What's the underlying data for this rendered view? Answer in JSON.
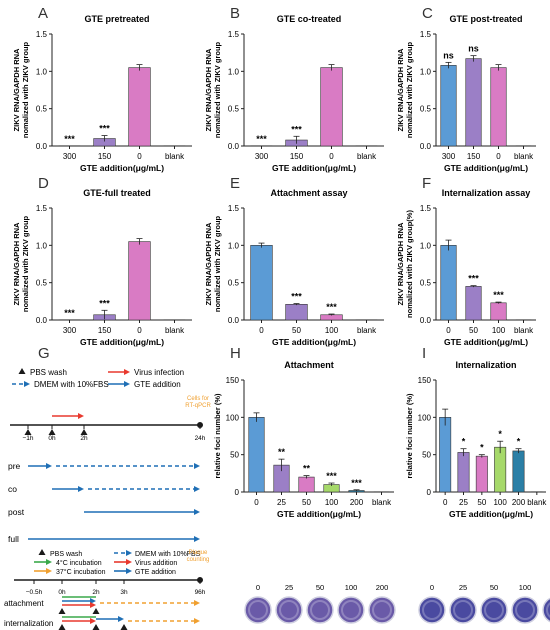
{
  "colors": {
    "pink": "#d97bc4",
    "blue": "#5b9bd5",
    "purple": "#9b7fc6",
    "green": "#a6d96a",
    "teal": "#2b7fa6",
    "red": "#e8392e",
    "orange": "#f0a030",
    "dark": "#1a1a1a",
    "dish_purple": "#6a5aa8"
  },
  "chart_data": [
    {
      "panel": "A",
      "type": "bar",
      "title": "GTE pretreated",
      "ylabel": [
        "ZIKV RNA/GAPDH RNA",
        "nomalized with ZIKV group"
      ],
      "xlabel": "GTE addition(μg/mL)",
      "ylim": [
        0,
        1.5
      ],
      "yticks": [
        "0.0",
        "0.5",
        "1.0",
        "1.5"
      ],
      "categories": [
        "300",
        "150",
        "0",
        "blank"
      ],
      "values": [
        0.0,
        0.1,
        1.05,
        0.0
      ],
      "errors": [
        0.0,
        0.04,
        0.04,
        0.0
      ],
      "colors": [
        "pink",
        "purple",
        "pink",
        "pink"
      ],
      "sig": [
        "***",
        "***",
        "",
        ""
      ]
    },
    {
      "panel": "B",
      "type": "bar",
      "title": "GTE co-treated",
      "ylabel": [
        "ZIKV RNA/GAPDH RNA",
        "nomalized with ZIKV group"
      ],
      "xlabel": "GTE addition(μg/mL)",
      "ylim": [
        0,
        1.5
      ],
      "yticks": [
        "0.0",
        "0.5",
        "1.0",
        "1.5"
      ],
      "categories": [
        "300",
        "150",
        "0",
        "blank"
      ],
      "values": [
        0.0,
        0.08,
        1.05,
        0.0
      ],
      "errors": [
        0.0,
        0.05,
        0.04,
        0.0
      ],
      "colors": [
        "pink",
        "purple",
        "pink",
        "pink"
      ],
      "sig": [
        "***",
        "***",
        "",
        ""
      ]
    },
    {
      "panel": "C",
      "type": "bar",
      "title": "GTE post-treated",
      "ylabel": [
        "ZIKV RNA/GAPDH RNA",
        "nomalized with ZIKV group"
      ],
      "xlabel": "GTE addition(μg/mL)",
      "ylim": [
        0,
        1.5
      ],
      "yticks": [
        "0.0",
        "0.5",
        "1.0",
        "1.5"
      ],
      "categories": [
        "300",
        "150",
        "0",
        "blank"
      ],
      "values": [
        1.08,
        1.17,
        1.05,
        0.0
      ],
      "errors": [
        0.04,
        0.04,
        0.04,
        0.0
      ],
      "colors": [
        "blue",
        "purple",
        "pink",
        "pink"
      ],
      "sig": [
        "ns",
        "ns",
        "",
        ""
      ]
    },
    {
      "panel": "D",
      "type": "bar",
      "title": "GTE-full treated",
      "ylabel": [
        "ZIKV RNA/GAPDH RNA",
        "nomalized with ZIKV group"
      ],
      "xlabel": "GTE addition(μg/mL)",
      "ylim": [
        0,
        1.5
      ],
      "yticks": [
        "0.0",
        "0.5",
        "1.0",
        "1.5"
      ],
      "categories": [
        "300",
        "150",
        "0",
        "blank"
      ],
      "values": [
        0.0,
        0.07,
        1.05,
        0.0
      ],
      "errors": [
        0.0,
        0.06,
        0.04,
        0.0
      ],
      "colors": [
        "pink",
        "purple",
        "pink",
        "pink"
      ],
      "sig": [
        "***",
        "***",
        "",
        ""
      ]
    },
    {
      "panel": "E",
      "type": "bar",
      "title": "Attachment assay",
      "ylabel": [
        "ZIKV RNA/GAPDH RNA",
        "nomalized with ZIKV group"
      ],
      "xlabel": "GTE addition(μg/mL)",
      "ylim": [
        0,
        1.5
      ],
      "yticks": [
        "0.0",
        "0.5",
        "1.0",
        "1.5"
      ],
      "categories": [
        "0",
        "50",
        "100",
        "blank"
      ],
      "values": [
        1.0,
        0.21,
        0.07,
        0.0
      ],
      "errors": [
        0.03,
        0.01,
        0.01,
        0.0
      ],
      "colors": [
        "blue",
        "purple",
        "pink",
        "pink"
      ],
      "sig": [
        "",
        "***",
        "***",
        ""
      ]
    },
    {
      "panel": "F",
      "type": "bar",
      "title": "Internalization assay",
      "ylabel": [
        "ZIKV RNA/GAPDH RNA",
        "nomalized with ZIKV group(%)"
      ],
      "xlabel": "GTE addition(μg/mL)",
      "ylim": [
        0,
        1.5
      ],
      "yticks": [
        "0.0",
        "0.5",
        "1.0",
        "1.5"
      ],
      "categories": [
        "0",
        "50",
        "100",
        "blank"
      ],
      "values": [
        1.0,
        0.45,
        0.23,
        0.0
      ],
      "errors": [
        0.07,
        0.01,
        0.01,
        0.0
      ],
      "colors": [
        "blue",
        "purple",
        "pink",
        "pink"
      ],
      "sig": [
        "",
        "***",
        "***",
        ""
      ]
    },
    {
      "panel": "H",
      "type": "bar",
      "title": "Attachment",
      "ylabel": [
        "relative foci number (%)"
      ],
      "xlabel": "GTE addition(μg/mL)",
      "ylim": [
        0,
        150
      ],
      "yticks": [
        "0",
        "50",
        "100",
        "150"
      ],
      "categories": [
        "0",
        "25",
        "50",
        "100",
        "200",
        "blank"
      ],
      "values": [
        100,
        36,
        20,
        10,
        2,
        0
      ],
      "errors": [
        6,
        8,
        2,
        2,
        1,
        0
      ],
      "colors": [
        "blue",
        "purple",
        "pink",
        "green",
        "teal",
        "pink"
      ],
      "sig": [
        "",
        "**",
        "**",
        "***",
        "***",
        ""
      ]
    },
    {
      "panel": "I",
      "type": "bar",
      "title": "Internalization",
      "ylabel": [
        "relative foci number (%)"
      ],
      "xlabel": "GTE addition(μg/mL)",
      "ylim": [
        0,
        150
      ],
      "yticks": [
        "0",
        "50",
        "100",
        "150"
      ],
      "categories": [
        "0",
        "25",
        "50",
        "100",
        "200",
        "blank"
      ],
      "values": [
        100,
        53,
        48,
        60,
        55,
        0
      ],
      "errors": [
        11,
        5,
        2,
        8,
        3,
        0
      ],
      "colors": [
        "blue",
        "purple",
        "pink",
        "green",
        "teal",
        "pink"
      ],
      "sig": [
        "",
        "*",
        "*",
        "*",
        "*",
        ""
      ]
    }
  ],
  "diagram_g": {
    "label": "G",
    "legend1": {
      "pbs": "PBS wash",
      "virus": "Virus infection",
      "dmem": "DMEM with 10%FBS",
      "gte": "GTE addition"
    },
    "cells_note": [
      "Cells for",
      "RT-qPCR"
    ],
    "timeline1_ticks": [
      "−1h",
      "0h",
      "2h",
      "24h"
    ],
    "rows1": [
      "pre",
      "co",
      "post",
      "full"
    ],
    "legend2": {
      "pbs": "PBS wash",
      "c4": "4°C incubation",
      "c37": "37°C incubation",
      "dmem": "DMEM with 10%FBS",
      "virus": "Virus addition",
      "gte": "GTE addition"
    },
    "plaque_note": [
      "Plaque",
      "counting"
    ],
    "timeline2_ticks": [
      "−0.5h",
      "0h",
      "2h",
      "3h",
      "96h"
    ],
    "rows2": [
      "attachment",
      "internalization"
    ]
  },
  "plates": {
    "H": [
      "0",
      "25",
      "50",
      "100",
      "200"
    ],
    "I": [
      "0",
      "25",
      "50",
      "100",
      "200"
    ]
  }
}
